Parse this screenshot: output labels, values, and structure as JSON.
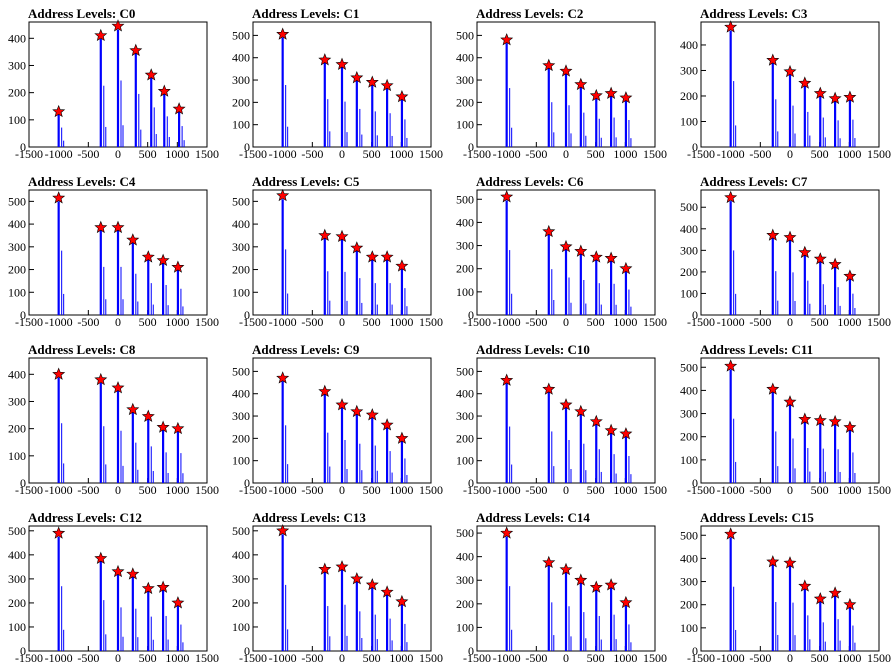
{
  "x_ticks": [
    -1500,
    -1000,
    -500,
    0,
    500,
    1000,
    1500
  ],
  "colors": {
    "bar": "#0000ff",
    "marker": "#ff0000",
    "marker_edge": "#000000",
    "frame": "#000000"
  },
  "chart_data": [
    {
      "type": "bar",
      "title": "Address Levels: C0",
      "xlim": [
        -1500,
        1500
      ],
      "ylim": [
        0,
        460
      ],
      "y_ticks": [
        0,
        100,
        200,
        300,
        400
      ],
      "peaks": [
        {
          "x": -1000,
          "y": 130
        },
        {
          "x": -290,
          "y": 410
        },
        {
          "x": 0,
          "y": 445
        },
        {
          "x": 300,
          "y": 355
        },
        {
          "x": 560,
          "y": 265
        },
        {
          "x": 780,
          "y": 205
        },
        {
          "x": 1030,
          "y": 140
        }
      ]
    },
    {
      "type": "bar",
      "title": "Address Levels: C1",
      "xlim": [
        -1500,
        1500
      ],
      "ylim": [
        0,
        560
      ],
      "y_ticks": [
        0,
        100,
        200,
        300,
        400,
        500
      ],
      "peaks": [
        {
          "x": -1000,
          "y": 505
        },
        {
          "x": -290,
          "y": 390
        },
        {
          "x": 0,
          "y": 370
        },
        {
          "x": 250,
          "y": 310
        },
        {
          "x": 510,
          "y": 290
        },
        {
          "x": 760,
          "y": 275
        },
        {
          "x": 1010,
          "y": 225
        }
      ]
    },
    {
      "type": "bar",
      "title": "Address Levels: C2",
      "xlim": [
        -1500,
        1500
      ],
      "ylim": [
        0,
        560
      ],
      "y_ticks": [
        0,
        100,
        200,
        300,
        400,
        500
      ],
      "peaks": [
        {
          "x": -1000,
          "y": 480
        },
        {
          "x": -290,
          "y": 365
        },
        {
          "x": 0,
          "y": 340
        },
        {
          "x": 250,
          "y": 280
        },
        {
          "x": 510,
          "y": 230
        },
        {
          "x": 760,
          "y": 240
        },
        {
          "x": 1010,
          "y": 220
        }
      ]
    },
    {
      "type": "bar",
      "title": "Address Levels: C3",
      "xlim": [
        -1500,
        1500
      ],
      "ylim": [
        0,
        490
      ],
      "y_ticks": [
        0,
        100,
        200,
        300,
        400
      ],
      "peaks": [
        {
          "x": -1000,
          "y": 470
        },
        {
          "x": -290,
          "y": 340
        },
        {
          "x": 0,
          "y": 295
        },
        {
          "x": 250,
          "y": 250
        },
        {
          "x": 510,
          "y": 210
        },
        {
          "x": 760,
          "y": 190
        },
        {
          "x": 1010,
          "y": 195
        }
      ]
    },
    {
      "type": "bar",
      "title": "Address Levels: C4",
      "xlim": [
        -1500,
        1500
      ],
      "ylim": [
        0,
        550
      ],
      "y_ticks": [
        0,
        100,
        200,
        300,
        400,
        500
      ],
      "peaks": [
        {
          "x": -1000,
          "y": 515
        },
        {
          "x": -290,
          "y": 385
        },
        {
          "x": 0,
          "y": 385
        },
        {
          "x": 250,
          "y": 330
        },
        {
          "x": 510,
          "y": 255
        },
        {
          "x": 760,
          "y": 240
        },
        {
          "x": 1010,
          "y": 210
        }
      ]
    },
    {
      "type": "bar",
      "title": "Address Levels: C5",
      "xlim": [
        -1500,
        1500
      ],
      "ylim": [
        0,
        550
      ],
      "y_ticks": [
        0,
        100,
        200,
        300,
        400,
        500
      ],
      "peaks": [
        {
          "x": -1000,
          "y": 525
        },
        {
          "x": -290,
          "y": 350
        },
        {
          "x": 0,
          "y": 345
        },
        {
          "x": 250,
          "y": 295
        },
        {
          "x": 510,
          "y": 255
        },
        {
          "x": 760,
          "y": 255
        },
        {
          "x": 1010,
          "y": 215
        }
      ]
    },
    {
      "type": "bar",
      "title": "Address Levels: C6",
      "xlim": [
        -1500,
        1500
      ],
      "ylim": [
        0,
        540
      ],
      "y_ticks": [
        0,
        100,
        200,
        300,
        400,
        500
      ],
      "peaks": [
        {
          "x": -1000,
          "y": 510
        },
        {
          "x": -290,
          "y": 360
        },
        {
          "x": 0,
          "y": 295
        },
        {
          "x": 250,
          "y": 275
        },
        {
          "x": 510,
          "y": 250
        },
        {
          "x": 760,
          "y": 245
        },
        {
          "x": 1010,
          "y": 200
        }
      ]
    },
    {
      "type": "bar",
      "title": "Address Levels: C7",
      "xlim": [
        -1500,
        1500
      ],
      "ylim": [
        0,
        580
      ],
      "y_ticks": [
        0,
        100,
        200,
        300,
        400,
        500
      ],
      "peaks": [
        {
          "x": -1000,
          "y": 545
        },
        {
          "x": -290,
          "y": 370
        },
        {
          "x": 0,
          "y": 360
        },
        {
          "x": 250,
          "y": 290
        },
        {
          "x": 510,
          "y": 260
        },
        {
          "x": 760,
          "y": 235
        },
        {
          "x": 1010,
          "y": 180
        }
      ]
    },
    {
      "type": "bar",
      "title": "Address Levels: C8",
      "xlim": [
        -1500,
        1500
      ],
      "ylim": [
        0,
        460
      ],
      "y_ticks": [
        0,
        100,
        200,
        300,
        400
      ],
      "peaks": [
        {
          "x": -1000,
          "y": 400
        },
        {
          "x": -290,
          "y": 380
        },
        {
          "x": 0,
          "y": 350
        },
        {
          "x": 250,
          "y": 270
        },
        {
          "x": 510,
          "y": 245
        },
        {
          "x": 760,
          "y": 205
        },
        {
          "x": 1010,
          "y": 200
        }
      ]
    },
    {
      "type": "bar",
      "title": "Address Levels: C9",
      "xlim": [
        -1500,
        1500
      ],
      "ylim": [
        0,
        560
      ],
      "y_ticks": [
        0,
        100,
        200,
        300,
        400,
        500
      ],
      "peaks": [
        {
          "x": -1000,
          "y": 470
        },
        {
          "x": -290,
          "y": 410
        },
        {
          "x": 0,
          "y": 350
        },
        {
          "x": 250,
          "y": 320
        },
        {
          "x": 510,
          "y": 305
        },
        {
          "x": 760,
          "y": 260
        },
        {
          "x": 1010,
          "y": 200
        }
      ]
    },
    {
      "type": "bar",
      "title": "Address Levels: C10",
      "xlim": [
        -1500,
        1500
      ],
      "ylim": [
        0,
        560
      ],
      "y_ticks": [
        0,
        100,
        200,
        300,
        400,
        500
      ],
      "peaks": [
        {
          "x": -1000,
          "y": 460
        },
        {
          "x": -290,
          "y": 420
        },
        {
          "x": 0,
          "y": 350
        },
        {
          "x": 250,
          "y": 320
        },
        {
          "x": 510,
          "y": 275
        },
        {
          "x": 760,
          "y": 235
        },
        {
          "x": 1010,
          "y": 220
        }
      ]
    },
    {
      "type": "bar",
      "title": "Address Levels: C11",
      "xlim": [
        -1500,
        1500
      ],
      "ylim": [
        0,
        540
      ],
      "y_ticks": [
        0,
        100,
        200,
        300,
        400,
        500
      ],
      "peaks": [
        {
          "x": -1000,
          "y": 505
        },
        {
          "x": -290,
          "y": 405
        },
        {
          "x": 0,
          "y": 350
        },
        {
          "x": 250,
          "y": 275
        },
        {
          "x": 510,
          "y": 270
        },
        {
          "x": 760,
          "y": 265
        },
        {
          "x": 1010,
          "y": 240
        }
      ]
    },
    {
      "type": "bar",
      "title": "Address Levels: C12",
      "xlim": [
        -1500,
        1500
      ],
      "ylim": [
        0,
        520
      ],
      "y_ticks": [
        0,
        100,
        200,
        300,
        400,
        500
      ],
      "peaks": [
        {
          "x": -1000,
          "y": 490
        },
        {
          "x": -290,
          "y": 385
        },
        {
          "x": 0,
          "y": 330
        },
        {
          "x": 250,
          "y": 320
        },
        {
          "x": 510,
          "y": 260
        },
        {
          "x": 760,
          "y": 265
        },
        {
          "x": 1010,
          "y": 200
        }
      ]
    },
    {
      "type": "bar",
      "title": "Address Levels: C13",
      "xlim": [
        -1500,
        1500
      ],
      "ylim": [
        0,
        520
      ],
      "y_ticks": [
        0,
        100,
        200,
        300,
        400,
        500
      ],
      "peaks": [
        {
          "x": -1000,
          "y": 500
        },
        {
          "x": -290,
          "y": 340
        },
        {
          "x": 0,
          "y": 350
        },
        {
          "x": 250,
          "y": 300
        },
        {
          "x": 510,
          "y": 275
        },
        {
          "x": 760,
          "y": 245
        },
        {
          "x": 1010,
          "y": 205
        }
      ]
    },
    {
      "type": "bar",
      "title": "Address Levels: C14",
      "xlim": [
        -1500,
        1500
      ],
      "ylim": [
        0,
        530
      ],
      "y_ticks": [
        0,
        100,
        200,
        300,
        400,
        500
      ],
      "peaks": [
        {
          "x": -1000,
          "y": 500
        },
        {
          "x": -290,
          "y": 375
        },
        {
          "x": 0,
          "y": 345
        },
        {
          "x": 250,
          "y": 300
        },
        {
          "x": 510,
          "y": 270
        },
        {
          "x": 760,
          "y": 280
        },
        {
          "x": 1010,
          "y": 205
        }
      ]
    },
    {
      "type": "bar",
      "title": "Address Levels: C15",
      "xlim": [
        -1500,
        1500
      ],
      "ylim": [
        0,
        540
      ],
      "y_ticks": [
        0,
        100,
        200,
        300,
        400,
        500
      ],
      "peaks": [
        {
          "x": -1000,
          "y": 505
        },
        {
          "x": -290,
          "y": 385
        },
        {
          "x": 0,
          "y": 380
        },
        {
          "x": 250,
          "y": 280
        },
        {
          "x": 510,
          "y": 225
        },
        {
          "x": 760,
          "y": 250
        },
        {
          "x": 1010,
          "y": 200
        }
      ]
    }
  ]
}
